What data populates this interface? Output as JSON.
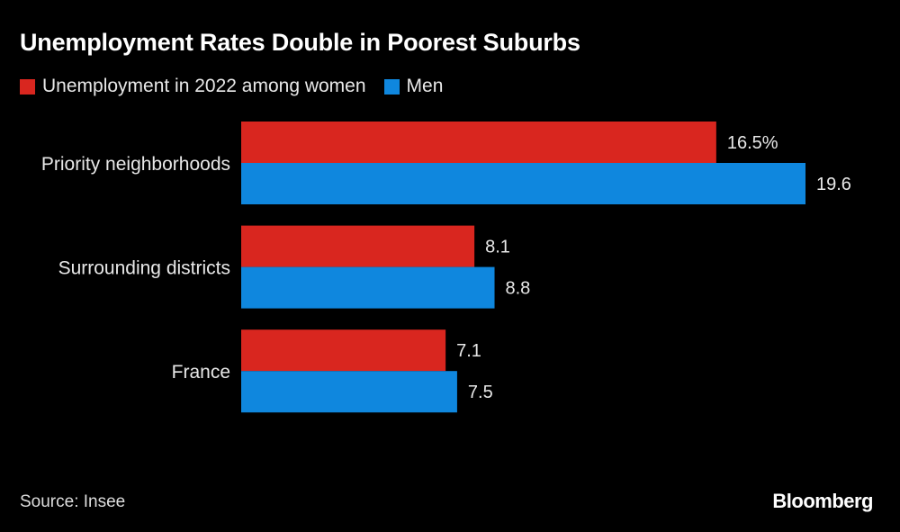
{
  "title": "Unemployment Rates Double in Poorest Suburbs",
  "source": "Source: Insee",
  "logo": "Bloomberg",
  "colors": {
    "women": "#d9261f",
    "men": "#0f87de",
    "background": "#000000"
  },
  "chart_data": {
    "type": "bar",
    "orientation": "horizontal",
    "title": "Unemployment Rates Double in Poorest Suburbs",
    "categories": [
      "Priority neighborhoods",
      "Surrounding districts",
      "France"
    ],
    "series": [
      {
        "name": "Unemployment in 2022 among women",
        "values": [
          16.5,
          8.1,
          7.1
        ],
        "labels": [
          "16.5%",
          "8.1",
          "7.1"
        ],
        "color": "#d9261f"
      },
      {
        "name": "Men",
        "values": [
          19.6,
          8.8,
          7.5
        ],
        "labels": [
          "19.6",
          "8.8",
          "7.5"
        ],
        "color": "#0f87de"
      }
    ],
    "xlim": [
      0,
      19.6
    ],
    "grid": false,
    "legend": "top-left"
  }
}
